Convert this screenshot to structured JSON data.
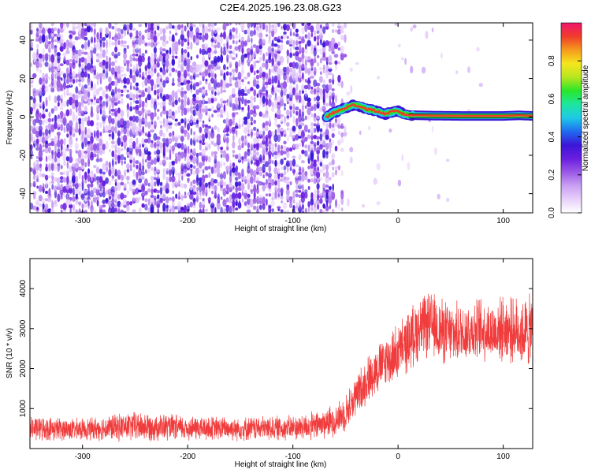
{
  "figure_title": "C2E4.2025.196.23.08.G23",
  "chart_data": [
    {
      "type": "heatmap",
      "title": "C2E4.2025.196.23.08.G23",
      "xlabel": "Height of straight line (km)",
      "ylabel": "Frequency (Hz)",
      "xlim": [
        -350,
        128
      ],
      "ylim": [
        -50,
        49
      ],
      "xticks": [
        -300,
        -200,
        -100,
        0,
        100
      ],
      "yticks": [
        -40,
        -20,
        0,
        20,
        40
      ],
      "colorbar": {
        "label": "Normalized spectral amplitude",
        "range": [
          0,
          1
        ],
        "ticks": [
          0.0,
          0.2,
          0.4,
          0.6,
          0.8
        ],
        "colormap": [
          "#ffffff",
          "#e8d0fb",
          "#c9a0f3",
          "#9b59e6",
          "#6a1ee0",
          "#3b16d8",
          "#1f6cf0",
          "#1ec9e6",
          "#1ee6a0",
          "#29e629",
          "#b8e61e",
          "#f5e61e",
          "#f59a1e",
          "#f03c2a",
          "#f0146e"
        ]
      },
      "noise_region_x": [
        -350,
        -65
      ],
      "signal_line": {
        "x_start": -68,
        "x_end": 128,
        "freq_track": [
          [
            -68,
            0.0
          ],
          [
            -62,
            2.0
          ],
          [
            -55,
            3.5
          ],
          [
            -48,
            5.2
          ],
          [
            -42,
            6.2
          ],
          [
            -36,
            5.5
          ],
          [
            -30,
            4.2
          ],
          [
            -24,
            3.5
          ],
          [
            -18,
            2.5
          ],
          [
            -12,
            1.5
          ],
          [
            -6,
            2.6
          ],
          [
            0,
            3.0
          ],
          [
            5,
            1.5
          ],
          [
            10,
            1.0
          ],
          [
            20,
            0.8
          ],
          [
            40,
            0.6
          ],
          [
            60,
            0.5
          ],
          [
            80,
            0.5
          ],
          [
            100,
            0.5
          ],
          [
            115,
            0.8
          ],
          [
            128,
            0.5
          ]
        ]
      }
    },
    {
      "type": "line",
      "xlabel": "Height of straight line (km)",
      "ylabel": "SNR (10 * v/v)",
      "xlim": [
        -350,
        128
      ],
      "ylim": [
        0,
        4750
      ],
      "xticks": [
        -300,
        -200,
        -100,
        0,
        100
      ],
      "yticks": [
        1000,
        2000,
        3000,
        4000
      ],
      "series_color": "#f03c3c",
      "snr_envelope": {
        "x": [
          -350,
          -300,
          -250,
          -200,
          -150,
          -100,
          -80,
          -60,
          -50,
          -40,
          -30,
          -20,
          -10,
          0,
          10,
          20,
          30,
          40,
          50,
          60,
          70,
          80,
          90,
          100,
          110,
          120,
          128
        ],
        "center": [
          500,
          480,
          560,
          510,
          500,
          520,
          560,
          700,
          900,
          1300,
          1700,
          2000,
          2200,
          2400,
          2700,
          3000,
          3100,
          2950,
          2850,
          2900,
          2950,
          3000,
          2900,
          3000,
          2950,
          2900,
          2950
        ],
        "amplitude": [
          350,
          300,
          420,
          350,
          330,
          350,
          400,
          450,
          500,
          600,
          650,
          700,
          750,
          800,
          850,
          900,
          900,
          950,
          850,
          850,
          850,
          900,
          850,
          900,
          900,
          1000,
          1000
        ]
      }
    }
  ]
}
